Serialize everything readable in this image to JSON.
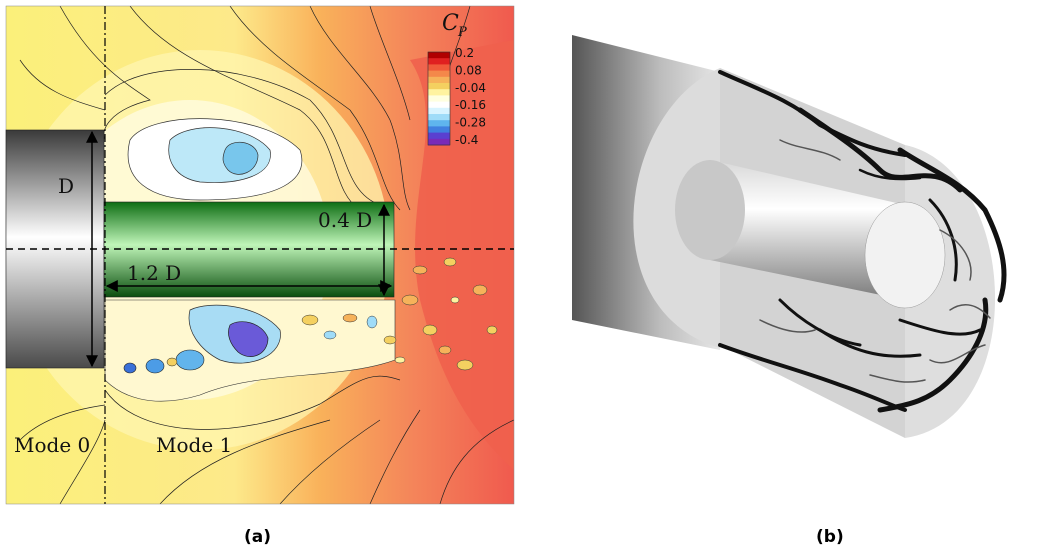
{
  "panel_a": {
    "caption": "(a)",
    "colorbar": {
      "title": "C",
      "title_sub": "P",
      "ticks": [
        "0.2",
        "0.08",
        "-0.04",
        "-0.16",
        "-0.28",
        "-0.4"
      ],
      "colors": [
        "#b00000",
        "#e02020",
        "#f05a3a",
        "#f4884a",
        "#f6b25a",
        "#f4d060",
        "#fff3a0",
        "#ffffe0",
        "#ffffff",
        "#d8f4ff",
        "#9fdcf8",
        "#5fb5ee",
        "#4080e0",
        "#5a40d0",
        "#7a2ab8"
      ]
    },
    "labels": {
      "diameter": "D",
      "small_diameter": "0.4 D",
      "length": "1.2 D",
      "mode0": "Mode 0",
      "mode1": "Mode 1"
    }
  },
  "panel_b": {
    "caption": "(b)"
  }
}
